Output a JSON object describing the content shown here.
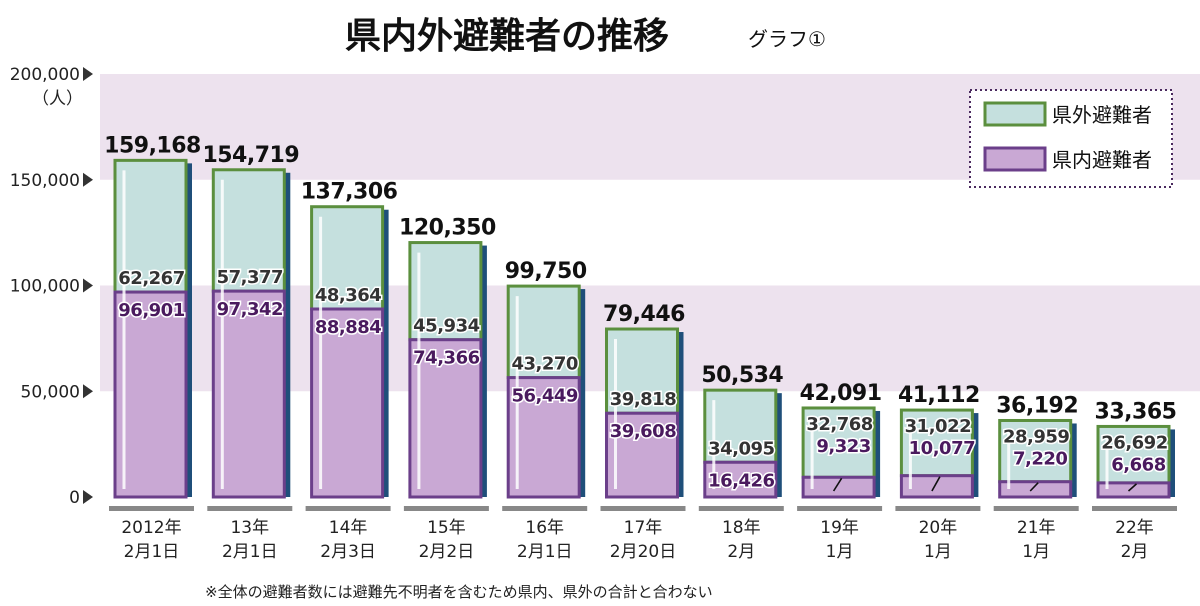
{
  "chart_data": {
    "type": "bar",
    "stacked": true,
    "title": "県内外避難者の推移",
    "subtitle": "グラフ①",
    "ylabel": "（人）",
    "ylim": [
      0,
      200000
    ],
    "yticks": [
      {
        "value": 0,
        "label": "0"
      },
      {
        "value": 50000,
        "label": "50,000"
      },
      {
        "value": 100000,
        "label": "100,000"
      },
      {
        "value": 150000,
        "label": "150,000"
      },
      {
        "value": 200000,
        "label": "200,000"
      }
    ],
    "categories": [
      [
        "2012年",
        "2月1日"
      ],
      [
        "13年",
        "2月1日"
      ],
      [
        "14年",
        "2月3日"
      ],
      [
        "15年",
        "2月2日"
      ],
      [
        "16年",
        "2月1日"
      ],
      [
        "17年",
        "2月20日"
      ],
      [
        "18年",
        "2月"
      ],
      [
        "19年",
        "1月"
      ],
      [
        "20年",
        "1月"
      ],
      [
        "21年",
        "1月"
      ],
      [
        "22年",
        "2月"
      ]
    ],
    "series": [
      {
        "name": "県内避難者",
        "color": "#c9a8d4",
        "border": "#6b3f8a",
        "values": [
          96901,
          97342,
          88884,
          74366,
          56449,
          39608,
          16426,
          9323,
          10077,
          7220,
          6668
        ],
        "labels": [
          "96,901",
          "97,342",
          "88,884",
          "74,366",
          "56,449",
          "39,608",
          "16,426",
          "9,323",
          "10,077",
          "7,220",
          "6,668"
        ]
      },
      {
        "name": "県外避難者",
        "color": "#c5e0de",
        "border": "#5b8f3e",
        "values": [
          62267,
          57377,
          48364,
          45934,
          43270,
          39818,
          34095,
          32768,
          31022,
          28959,
          26692
        ],
        "labels": [
          "62,267",
          "57,377",
          "48,364",
          "45,934",
          "43,270",
          "39,818",
          "34,095",
          "32,768",
          "31,022",
          "28,959",
          "26,692"
        ]
      }
    ],
    "totals": [
      159168,
      154719,
      137306,
      120350,
      99750,
      79446,
      50534,
      42091,
      41112,
      36192,
      33365
    ],
    "total_labels": [
      "159,168",
      "154,719",
      "137,306",
      "120,350",
      "99,750",
      "79,446",
      "50,534",
      "42,091",
      "41,112",
      "36,192",
      "33,365"
    ],
    "note": "※全体の避難者数には避難先不明者を含むため県内、県外の合計と合わない",
    "legend": {
      "position": "top-right"
    },
    "colors": {
      "band": "#ede2ee",
      "pref_in_text": "#4a1a5e",
      "pref_out_text": "#333333",
      "shadow": "#1f4f7a"
    }
  }
}
